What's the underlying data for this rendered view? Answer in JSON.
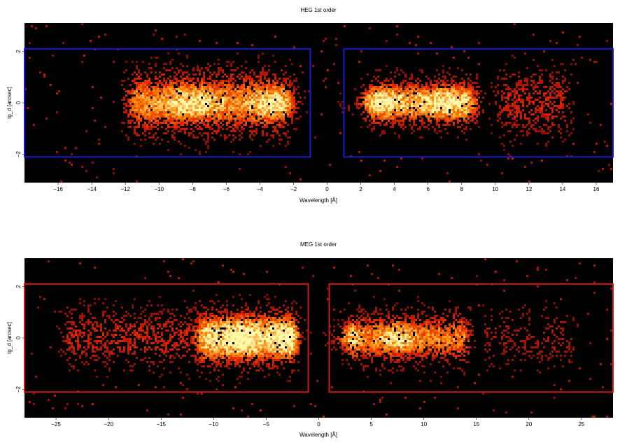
{
  "chart_data": [
    {
      "type": "heatmap",
      "title": "HEG 1st order",
      "xlabel": "Wavelength [Å]",
      "ylabel": "tg_d [arcsec]",
      "xlim": [
        -18,
        17
      ],
      "ylim": [
        -3.1,
        3.1
      ],
      "x_ticks": [
        -16,
        -14,
        -12,
        -10,
        -8,
        -6,
        -4,
        -2,
        0,
        2,
        4,
        6,
        8,
        10,
        12,
        14,
        16
      ],
      "y_ticks": [
        -2,
        0,
        2
      ],
      "grid": false,
      "colormap": "heat",
      "background": "#000000",
      "extraction_region_color": "#1a1acc",
      "extraction_regions": [
        {
          "x": [
            -18,
            -1
          ],
          "y": [
            -2.1,
            2.1
          ]
        },
        {
          "x": [
            1,
            17
          ],
          "y": [
            -2.1,
            2.1
          ]
        }
      ],
      "emission": {
        "blobs": [
          {
            "x": [
              -12.5,
              -1.6
            ],
            "y_sigma": 0.75,
            "intensity": 0.75
          },
          {
            "x": [
              1.8,
              9.5
            ],
            "y_sigma": 0.55,
            "intensity": 0.85
          },
          {
            "x": [
              9.5,
              15
            ],
            "y_sigma": 0.8,
            "intensity": 0.35
          }
        ],
        "peaks": [
          {
            "x": -8,
            "intensity": 1.0
          },
          {
            "x": -3,
            "intensity": 1.0
          },
          {
            "x": 3,
            "intensity": 1.0
          },
          {
            "x": 7,
            "intensity": 0.95
          }
        ]
      }
    },
    {
      "type": "heatmap",
      "title": "MEG 1st order",
      "xlabel": "Wavelength [Å]",
      "ylabel": "tg_d [arcsec]",
      "xlim": [
        -28,
        28
      ],
      "ylim": [
        -3.1,
        3.1
      ],
      "x_ticks": [
        -25,
        -20,
        -15,
        -10,
        -5,
        0,
        5,
        10,
        15,
        20,
        25
      ],
      "y_ticks": [
        -2,
        0,
        2
      ],
      "grid": false,
      "colormap": "heat",
      "background": "#000000",
      "extraction_region_color": "#cc1a1a",
      "extraction_regions": [
        {
          "x": [
            -28,
            -1
          ],
          "y": [
            -2.1,
            2.1
          ]
        },
        {
          "x": [
            1,
            28
          ],
          "y": [
            -2.1,
            2.1
          ]
        }
      ],
      "emission": {
        "blobs": [
          {
            "x": [
              -25,
              -1.5
            ],
            "y_sigma": 0.7,
            "intensity": 0.35
          },
          {
            "x": [
              -12,
              -1.5
            ],
            "y_sigma": 0.6,
            "intensity": 0.75
          },
          {
            "x": [
              2,
              15
            ],
            "y_sigma": 0.6,
            "intensity": 0.7
          },
          {
            "x": [
              15,
              25
            ],
            "y_sigma": 0.7,
            "intensity": 0.2
          }
        ],
        "peaks": [
          {
            "x": -7.5,
            "intensity": 1.0
          },
          {
            "x": -3,
            "intensity": 0.9
          },
          {
            "x": 2.5,
            "intensity": 0.85
          },
          {
            "x": 7.5,
            "intensity": 1.0
          }
        ]
      }
    }
  ]
}
